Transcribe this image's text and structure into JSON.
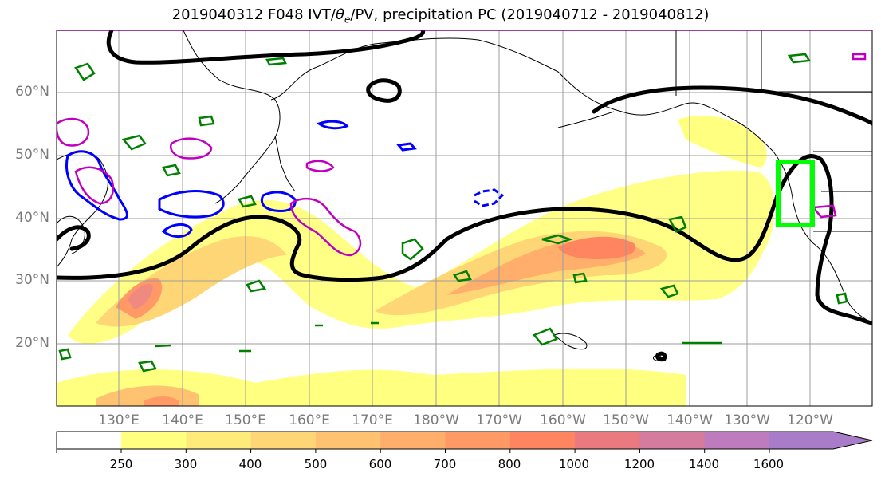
{
  "title": {
    "prefix": "2019040312 F048 IVT/",
    "theta": "θ",
    "theta_sub": "e",
    "suffix": "/PV, precipitation PC (2019040712 - 2019040812)"
  },
  "map": {
    "latitude_labels": [
      "60°N",
      "50°N",
      "40°N",
      "30°N",
      "20°N"
    ],
    "longitude_labels": [
      "130°E",
      "140°E",
      "150°E",
      "160°E",
      "170°E",
      "180°W",
      "170°W",
      "160°W",
      "150°W",
      "140°W",
      "130°W",
      "120°W"
    ],
    "gridlines": true,
    "colors": {
      "pv_contour": "#000000",
      "theta_e_contour_blue": "#0000ff",
      "theta_e_contour_magenta": "#c000c0",
      "precipitation_contour": "#008000",
      "target_box": "#00ff00"
    }
  },
  "colorbar": {
    "ticks": [
      "250",
      "300",
      "400",
      "500",
      "600",
      "700",
      "800",
      "1000",
      "1200",
      "1400",
      "1600"
    ],
    "colors": [
      "#ffff80",
      "#ffeb7a",
      "#ffd675",
      "#ffc270",
      "#ffae6b",
      "#ff9a66",
      "#ff8561",
      "#ea7a80",
      "#d47b9e",
      "#be7bbd",
      "#a87cc8"
    ]
  }
}
